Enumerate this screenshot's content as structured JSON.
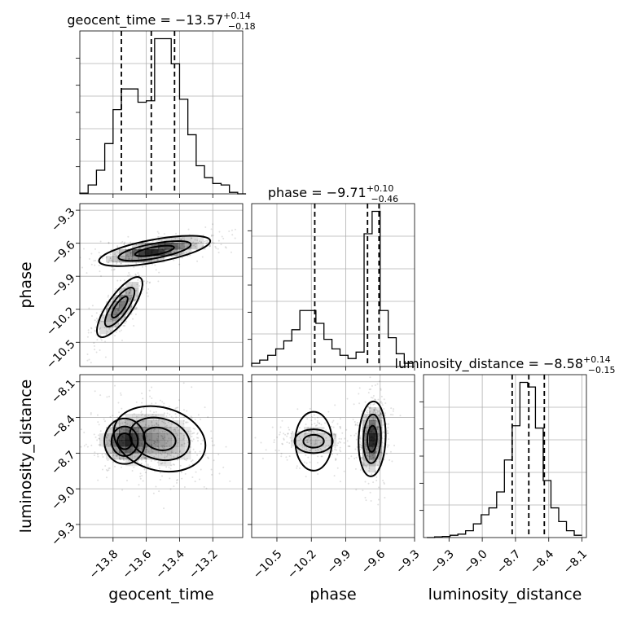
{
  "chart_data": [
    {
      "type": "histogram",
      "panel": "diag-geocent_time",
      "parameter": "geocent_time",
      "title": {
        "name": "geocent_time",
        "median": "−13.57",
        "plus": "0.14",
        "minus": "0.18"
      },
      "quantiles": [
        -13.75,
        -13.57,
        -13.43
      ],
      "xlim": [
        -14.0,
        -13.02
      ],
      "bins": [
        -14.0,
        -13.95,
        -13.9,
        -13.85,
        -13.8,
        -13.75,
        -13.7,
        -13.65,
        -13.6,
        -13.55,
        -13.5,
        -13.45,
        -13.4,
        -13.35,
        -13.3,
        -13.25,
        -13.2,
        -13.15,
        -13.1,
        -13.05,
        -13.0
      ],
      "counts": [
        0.05,
        0.6,
        1.6,
        3.4,
        5.7,
        7.1,
        7.1,
        6.2,
        6.3,
        10.5,
        10.5,
        8.8,
        6.4,
        4.0,
        1.9,
        1.1,
        0.7,
        0.6,
        0.1,
        0.0
      ]
    },
    {
      "type": "histogram",
      "panel": "diag-phase",
      "parameter": "phase",
      "title": {
        "name": "phase",
        "median": "−9.71",
        "plus": "0.10",
        "minus": "0.46"
      },
      "quantiles": [
        -10.17,
        -9.71,
        -9.61
      ],
      "xlim": [
        -10.72,
        -9.3
      ],
      "bins": [
        -10.72,
        -10.65,
        -10.58,
        -10.51,
        -10.44,
        -10.37,
        -10.3,
        -10.23,
        -10.16,
        -10.09,
        -10.02,
        -9.95,
        -9.88,
        -9.81,
        -9.74,
        -9.67,
        -9.6,
        -9.53,
        -9.46,
        -9.39,
        -9.32
      ],
      "counts": [
        0.2,
        0.4,
        0.7,
        1.1,
        1.6,
        2.3,
        3.5,
        3.5,
        2.7,
        1.7,
        1.1,
        0.7,
        0.5,
        0.9,
        8.3,
        9.7,
        3.5,
        1.8,
        0.8,
        0.2
      ]
    },
    {
      "type": "histogram",
      "panel": "diag-luminosity_distance",
      "parameter": "luminosity_distance",
      "title": {
        "name": "luminosity_distance",
        "median": "−8.58",
        "plus": "0.14",
        "minus": "0.15"
      },
      "quantiles": [
        -8.73,
        -8.58,
        -8.44
      ],
      "xlim": [
        -9.53,
        -8.06
      ],
      "bins": [
        -9.5,
        -9.43,
        -9.36,
        -9.29,
        -9.22,
        -9.15,
        -9.08,
        -9.01,
        -8.94,
        -8.87,
        -8.8,
        -8.73,
        -8.66,
        -8.59,
        -8.52,
        -8.45,
        -8.38,
        -8.31,
        -8.24,
        -8.17,
        -8.1
      ],
      "counts": [
        0.0,
        0.03,
        0.05,
        0.1,
        0.15,
        0.3,
        0.6,
        1.0,
        1.3,
        2.0,
        3.4,
        4.9,
        6.8,
        6.6,
        4.8,
        2.5,
        1.3,
        0.7,
        0.3,
        0.1
      ]
    },
    {
      "type": "scatter",
      "panel": "phase-vs-geocent_time",
      "x_param": "geocent_time",
      "y_param": "phase",
      "xlim": [
        -14.0,
        -13.02
      ],
      "ylim": [
        -10.72,
        -9.24
      ],
      "modes": [
        {
          "mx": -13.55,
          "my": -9.67,
          "sx": 0.17,
          "sy": 0.07,
          "rho": 0.65,
          "weight": 0.62
        },
        {
          "mx": -13.76,
          "my": -10.18,
          "sx": 0.08,
          "sy": 0.16,
          "rho": 0.78,
          "weight": 0.38
        }
      ]
    },
    {
      "type": "scatter",
      "panel": "luminosity_distance-vs-geocent_time",
      "x_param": "geocent_time",
      "y_param": "luminosity_distance",
      "xlim": [
        -14.0,
        -13.02
      ],
      "ylim": [
        -9.41,
        -8.04
      ],
      "modes": [
        {
          "mx": -13.73,
          "my": -8.6,
          "sx": 0.08,
          "sy": 0.1,
          "rho": 0.0,
          "weight": 0.38
        },
        {
          "mx": -13.52,
          "my": -8.58,
          "sx": 0.14,
          "sy": 0.14,
          "rho": -0.2,
          "weight": 0.62
        }
      ]
    },
    {
      "type": "scatter",
      "panel": "luminosity_distance-vs-phase",
      "x_param": "phase",
      "y_param": "luminosity_distance",
      "xlim": [
        -10.72,
        -9.3
      ],
      "ylim": [
        -9.41,
        -8.04
      ],
      "modes": [
        {
          "mx": -10.18,
          "my": -8.6,
          "sx": 0.15,
          "sy": 0.09,
          "rho": 0.0,
          "weight": 0.38
        },
        {
          "mx": -9.67,
          "my": -8.58,
          "sx": 0.06,
          "sy": 0.16,
          "rho": 0.1,
          "weight": 0.62
        }
      ]
    }
  ],
  "axes": {
    "geocent_time": {
      "label": "geocent_time",
      "ticks": [
        -13.8,
        -13.6,
        -13.4,
        -13.2
      ],
      "tick_labels": [
        "−13.8",
        "−13.6",
        "−13.4",
        "−13.2"
      ]
    },
    "phase": {
      "label": "phase",
      "ticks": [
        -10.5,
        -10.2,
        -9.9,
        -9.6,
        -9.3
      ],
      "tick_labels": [
        "−10.5",
        "−10.2",
        "−9.9",
        "−9.6",
        "−9.3"
      ]
    },
    "luminosity_distance": {
      "label": "luminosity_distance",
      "ticks": [
        -9.3,
        -9.0,
        -8.7,
        -8.4,
        -8.1
      ],
      "tick_labels": [
        "−9.3",
        "−9.0",
        "−8.7",
        "−8.4",
        "−8.1"
      ]
    }
  },
  "grid": true
}
